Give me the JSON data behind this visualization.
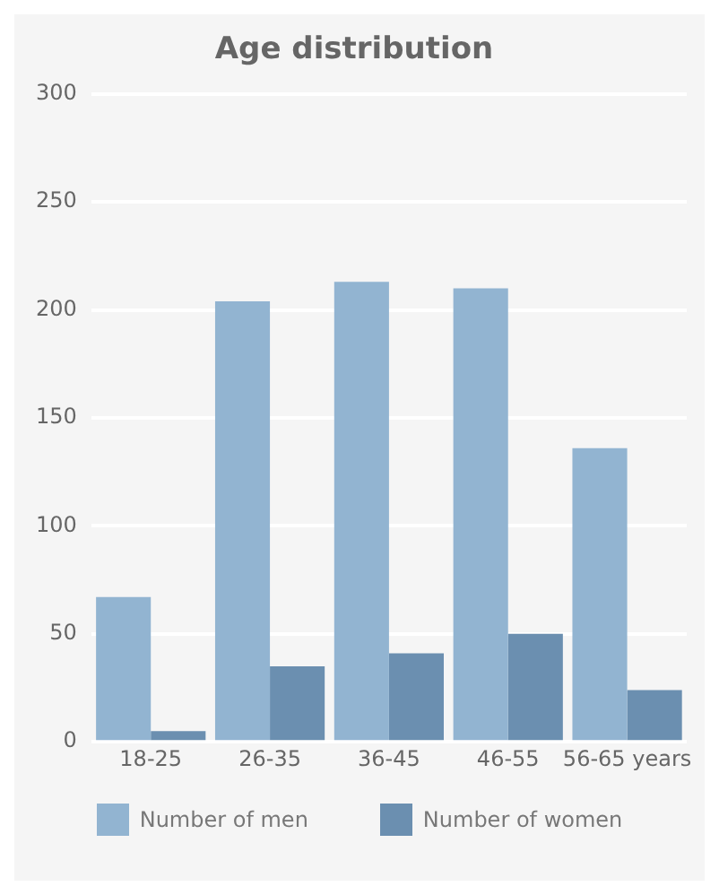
{
  "chart_data": {
    "type": "bar",
    "title": "Age distribution",
    "categories": [
      "18-25",
      "26-35",
      "36-45",
      "46-55",
      "56-65 years"
    ],
    "series": [
      {
        "name": "Number of men",
        "color": "#92b4d1",
        "values": [
          67,
          204,
          213,
          210,
          136
        ]
      },
      {
        "name": "Number of women",
        "color": "#6b8fb0",
        "values": [
          5,
          35,
          41,
          50,
          24
        ]
      }
    ],
    "ylim": [
      0,
      300
    ],
    "yticks": [
      0,
      50,
      100,
      150,
      200,
      250,
      300
    ],
    "grid": "y",
    "legend": "bottom"
  }
}
